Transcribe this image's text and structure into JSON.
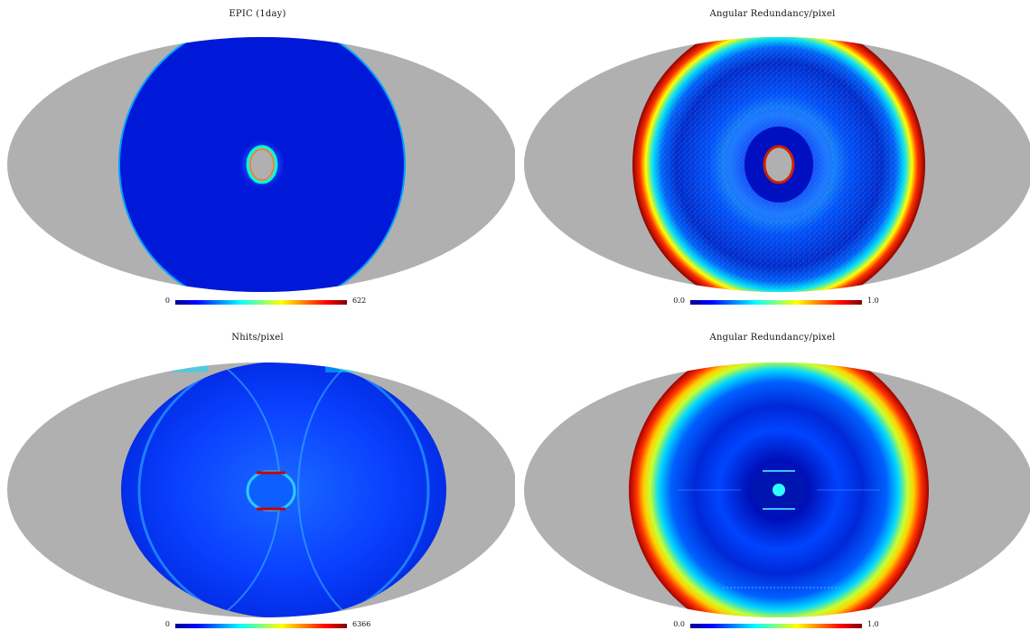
{
  "panels": [
    {
      "title": "EPIC (1day)",
      "colorbar": {
        "min": "0",
        "max": "622"
      }
    },
    {
      "title": "Angular Redundancy/pixel",
      "colorbar": {
        "min": "0.0",
        "max": "1.0"
      }
    },
    {
      "title": "Nhits/pixel",
      "colorbar": {
        "min": "0",
        "max": "6366"
      }
    },
    {
      "title": "Angular Redundancy/pixel",
      "colorbar": {
        "min": "0.0",
        "max": "1.0"
      }
    }
  ],
  "colors": {
    "masked": "#b0b0b0",
    "background": "#ffffff",
    "colormap": [
      "#00008f",
      "#0000ff",
      "#00ffff",
      "#ffff00",
      "#ff0000",
      "#800000"
    ]
  },
  "projection": "mollweide"
}
